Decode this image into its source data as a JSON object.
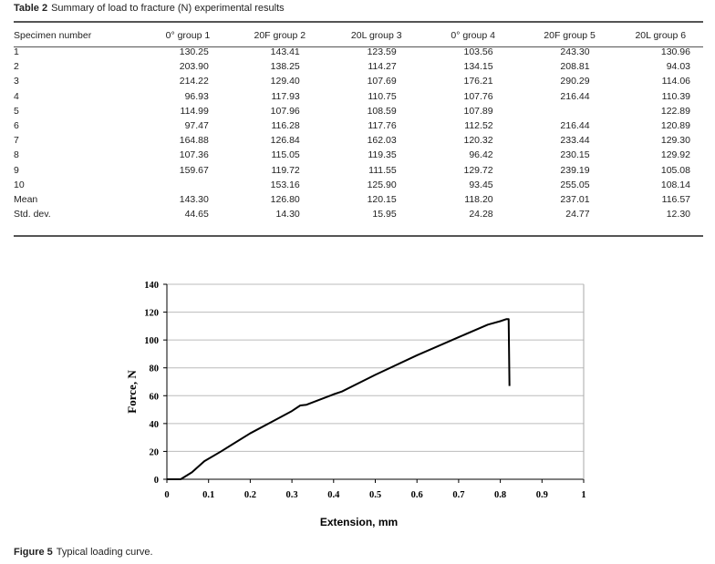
{
  "table": {
    "label": "Table 2",
    "caption": "Summary of load to fracture (N) experimental results",
    "headers": [
      "Specimen number",
      "0° group 1",
      "20F group 2",
      "20L group 3",
      "0° group 4",
      "20F group 5",
      "20L group 6"
    ],
    "rows": [
      [
        "1",
        "130.25",
        "143.41",
        "123.59",
        "103.56",
        "243.30",
        "130.96"
      ],
      [
        "2",
        "203.90",
        "138.25",
        "114.27",
        "134.15",
        "208.81",
        "94.03"
      ],
      [
        "3",
        "214.22",
        "129.40",
        "107.69",
        "176.21",
        "290.29",
        "114.06"
      ],
      [
        "4",
        "96.93",
        "117.93",
        "110.75",
        "107.76",
        "216.44",
        "110.39"
      ],
      [
        "5",
        "114.99",
        "107.96",
        "108.59",
        "107.89",
        "",
        "122.89"
      ],
      [
        "6",
        "97.47",
        "116.28",
        "117.76",
        "112.52",
        "216.44",
        "120.89"
      ],
      [
        "7",
        "164.88",
        "126.84",
        "162.03",
        "120.32",
        "233.44",
        "129.30"
      ],
      [
        "8",
        "107.36",
        "115.05",
        "119.35",
        "96.42",
        "230.15",
        "129.92"
      ],
      [
        "9",
        "159.67",
        "119.72",
        "111.55",
        "129.72",
        "239.19",
        "105.08"
      ],
      [
        "10",
        "",
        "153.16",
        "125.90",
        "93.45",
        "255.05",
        "108.14"
      ],
      [
        "Mean",
        "143.30",
        "126.80",
        "120.15",
        "118.20",
        "237.01",
        "116.57"
      ],
      [
        "Std. dev.",
        "44.65",
        "14.30",
        "15.95",
        "24.28",
        "24.77",
        "12.30"
      ]
    ]
  },
  "figure": {
    "label": "Figure 5",
    "caption": "Typical loading curve."
  },
  "chart_data": {
    "type": "line",
    "xlabel": "Extension, mm",
    "ylabel": "Force, N",
    "xlim": [
      0,
      1
    ],
    "ylim": [
      0,
      140
    ],
    "xticks": [
      "0",
      "0.1",
      "0.2",
      "0.3",
      "0.4",
      "0.5",
      "0.6",
      "0.7",
      "0.8",
      "0.9",
      "1"
    ],
    "yticks": [
      "0",
      "20",
      "40",
      "60",
      "80",
      "100",
      "120",
      "140"
    ],
    "grid": "horizontal",
    "line_color": "#000000",
    "series": [
      {
        "x": [
          0,
          0.033,
          0.06,
          0.09,
          0.13,
          0.2,
          0.25,
          0.3,
          0.32,
          0.335,
          0.4,
          0.42,
          0.5,
          0.6,
          0.7,
          0.77,
          0.8,
          0.815,
          0.82,
          0.822
        ],
        "y": [
          0,
          0,
          5,
          13,
          20,
          33,
          41,
          49,
          53,
          53.5,
          61,
          63,
          75,
          89,
          102,
          111,
          113.5,
          115,
          115,
          67
        ]
      }
    ]
  }
}
